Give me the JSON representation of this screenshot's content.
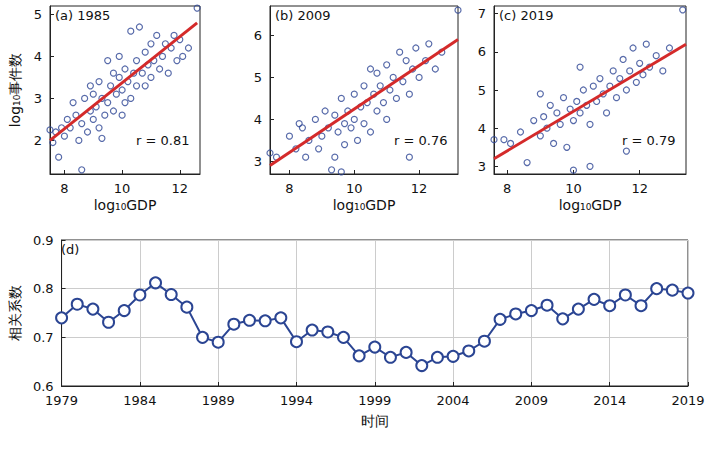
{
  "chart_data": [
    {
      "type": "scatter",
      "title": "(a) 1985",
      "annotation": "r = 0.81",
      "x_label": "log₁₀GDP",
      "y_label": "log₁₀事件数",
      "xlim": [
        7.5,
        12.7
      ],
      "xticks": [
        8,
        10,
        12
      ],
      "ylim": [
        1.2,
        5.2
      ],
      "yticks": [
        2,
        3,
        4,
        5
      ],
      "series": [
        {
          "type": "scatter",
          "color": "#2e4695",
          "marker": "open_circle",
          "x": [
            7.5,
            7.6,
            7.7,
            7.8,
            7.9,
            8.0,
            8.1,
            8.2,
            8.3,
            8.4,
            8.5,
            8.6,
            8.6,
            8.7,
            8.8,
            8.9,
            9.0,
            9.0,
            9.1,
            9.2,
            9.2,
            9.3,
            9.4,
            9.5,
            9.5,
            9.6,
            9.7,
            9.7,
            9.8,
            9.9,
            9.9,
            10.0,
            10.0,
            10.1,
            10.2,
            10.3,
            10.3,
            10.4,
            10.5,
            10.5,
            10.6,
            10.7,
            10.8,
            10.8,
            10.9,
            11.0,
            11.0,
            11.1,
            11.2,
            11.3,
            11.4,
            11.5,
            11.6,
            11.7,
            11.8,
            11.9,
            12.0,
            12.1,
            12.3,
            12.6,
            9.3,
            10.1,
            8.9
          ],
          "values": [
            2.25,
            1.95,
            2.2,
            1.6,
            2.3,
            2.1,
            2.5,
            2.3,
            2.9,
            2.6,
            2.0,
            1.3,
            2.4,
            3.0,
            2.2,
            2.7,
            2.5,
            3.1,
            2.8,
            3.4,
            2.3,
            3.0,
            2.6,
            3.9,
            2.9,
            3.3,
            3.6,
            2.7,
            3.1,
            3.5,
            4.0,
            3.2,
            2.6,
            3.7,
            3.4,
            4.6,
            3.0,
            3.6,
            3.9,
            3.3,
            4.7,
            3.6,
            4.1,
            3.3,
            3.8,
            4.3,
            3.5,
            3.9,
            4.5,
            3.7,
            4.0,
            4.3,
            3.6,
            4.2,
            4.5,
            3.9,
            4.4,
            4.0,
            4.2,
            5.15,
            2.05,
            2.9,
            3.3
          ]
        },
        {
          "type": "line",
          "color": "#d42a2a",
          "x": [
            7.5,
            12.6
          ],
          "values": [
            2.0,
            4.8
          ]
        }
      ]
    },
    {
      "type": "scatter",
      "title": "(b) 2009",
      "annotation": "r = 0.76",
      "x_label": "log₁₀GDP",
      "xlim": [
        7.4,
        13.2
      ],
      "xticks": [
        8,
        10,
        12
      ],
      "ylim": [
        2.7,
        6.7
      ],
      "yticks": [
        3,
        4,
        5,
        6
      ],
      "series": [
        {
          "type": "scatter",
          "color": "#2e4695",
          "marker": "open_circle",
          "x": [
            7.4,
            7.6,
            8.0,
            8.2,
            8.4,
            8.5,
            8.6,
            8.8,
            8.9,
            9.0,
            9.1,
            9.2,
            9.3,
            9.4,
            9.4,
            9.5,
            9.6,
            9.7,
            9.7,
            9.8,
            9.9,
            10.0,
            10.0,
            10.1,
            10.2,
            10.3,
            10.3,
            10.4,
            10.5,
            10.6,
            10.7,
            10.7,
            10.8,
            10.9,
            11.0,
            11.0,
            11.1,
            11.2,
            11.3,
            11.4,
            11.5,
            11.6,
            11.7,
            11.8,
            11.9,
            12.0,
            12.2,
            12.3,
            12.5,
            12.7,
            13.2,
            11.7,
            9.6,
            8.3,
            10.5
          ],
          "values": [
            3.2,
            3.1,
            3.6,
            3.3,
            3.8,
            3.1,
            3.5,
            4.0,
            3.3,
            3.6,
            4.2,
            3.8,
            2.8,
            3.1,
            4.1,
            3.7,
            4.5,
            3.9,
            3.4,
            4.2,
            3.8,
            4.6,
            4.0,
            3.5,
            4.3,
            4.8,
            3.9,
            4.4,
            3.7,
            4.6,
            5.1,
            4.2,
            4.8,
            4.4,
            5.3,
            4.0,
            4.7,
            5.0,
            4.5,
            5.6,
            4.9,
            5.4,
            4.6,
            5.2,
            5.7,
            5.0,
            5.4,
            5.8,
            5.2,
            5.6,
            6.6,
            3.1,
            2.75,
            3.9,
            5.2
          ]
        },
        {
          "type": "line",
          "color": "#d42a2a",
          "x": [
            7.4,
            13.2
          ],
          "values": [
            2.9,
            5.9
          ]
        }
      ]
    },
    {
      "type": "scatter",
      "title": "(c) 2019",
      "annotation": "r = 0.79",
      "x_label": "log₁₀GDP",
      "xlim": [
        7.6,
        13.4
      ],
      "xticks": [
        8,
        10,
        12
      ],
      "ylim": [
        2.8,
        7.2
      ],
      "yticks": [
        3,
        4,
        5,
        6,
        7
      ],
      "series": [
        {
          "type": "scatter",
          "color": "#2e4695",
          "marker": "open_circle",
          "x": [
            7.6,
            7.9,
            8.1,
            8.4,
            8.6,
            8.8,
            9.0,
            9.1,
            9.2,
            9.3,
            9.4,
            9.5,
            9.6,
            9.7,
            9.8,
            9.9,
            10.0,
            10.0,
            10.1,
            10.2,
            10.3,
            10.4,
            10.5,
            10.6,
            10.7,
            10.8,
            10.9,
            11.0,
            11.1,
            11.2,
            11.3,
            11.4,
            11.5,
            11.6,
            11.7,
            11.8,
            11.9,
            12.0,
            12.1,
            12.2,
            12.3,
            12.5,
            12.7,
            12.9,
            13.3,
            11.6,
            10.5,
            9.0,
            10.2
          ],
          "values": [
            3.7,
            3.7,
            3.6,
            3.9,
            3.1,
            4.2,
            3.8,
            4.3,
            4.0,
            4.6,
            3.6,
            4.4,
            4.1,
            4.8,
            3.5,
            4.5,
            4.2,
            2.9,
            4.7,
            4.4,
            5.0,
            4.6,
            4.1,
            5.1,
            4.7,
            5.3,
            4.9,
            4.4,
            5.1,
            5.5,
            4.8,
            5.3,
            5.8,
            5.0,
            5.5,
            6.1,
            5.2,
            5.7,
            5.4,
            6.2,
            5.6,
            5.9,
            5.5,
            6.1,
            7.1,
            3.4,
            3.0,
            4.9,
            5.6
          ]
        },
        {
          "type": "line",
          "color": "#d42a2a",
          "x": [
            7.6,
            13.4
          ],
          "values": [
            3.2,
            6.2
          ]
        }
      ]
    },
    {
      "type": "line",
      "title": "(d)",
      "x_label": "时间",
      "y_label": "相关系数",
      "grid": true,
      "xlim": [
        1979,
        2019
      ],
      "xticks": [
        1979,
        1984,
        1989,
        1994,
        1999,
        2004,
        2009,
        2014,
        2019
      ],
      "ylim": [
        0.6,
        0.9
      ],
      "yticks": [
        0.6,
        0.7,
        0.8,
        0.9
      ],
      "series": [
        {
          "type": "line",
          "color": "#2b4593",
          "marker": "open_circle",
          "x": [
            1979,
            1980,
            1981,
            1982,
            1983,
            1984,
            1985,
            1986,
            1987,
            1988,
            1989,
            1990,
            1991,
            1992,
            1993,
            1994,
            1995,
            1996,
            1997,
            1998,
            1999,
            2000,
            2001,
            2002,
            2003,
            2004,
            2005,
            2006,
            2007,
            2008,
            2009,
            2010,
            2011,
            2012,
            2013,
            2014,
            2015,
            2016,
            2017,
            2018,
            2019
          ],
          "values": [
            0.74,
            0.768,
            0.758,
            0.731,
            0.755,
            0.787,
            0.812,
            0.788,
            0.762,
            0.7,
            0.69,
            0.727,
            0.735,
            0.734,
            0.74,
            0.691,
            0.715,
            0.711,
            0.7,
            0.662,
            0.68,
            0.659,
            0.669,
            0.642,
            0.659,
            0.661,
            0.672,
            0.692,
            0.737,
            0.748,
            0.755,
            0.766,
            0.738,
            0.758,
            0.778,
            0.765,
            0.787,
            0.765,
            0.8,
            0.797,
            0.791
          ]
        }
      ]
    }
  ]
}
